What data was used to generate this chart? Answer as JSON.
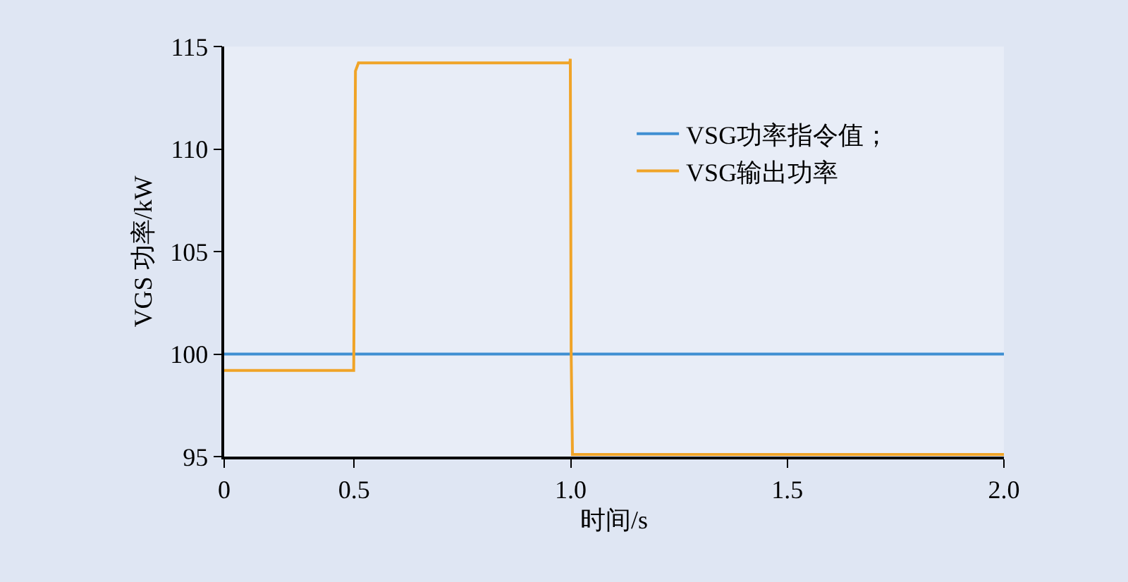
{
  "chart_data": {
    "type": "line",
    "xlabel": "时间/s",
    "ylabel": "VGS 功率/kW",
    "xlim": [
      0.2,
      2.0
    ],
    "xticks": [
      {
        "value": 0.2,
        "label": "0"
      },
      0.5,
      {
        "value": 1.0,
        "label": "1.0"
      },
      1.5,
      {
        "value": 2.0,
        "label": "2.0"
      }
    ],
    "ylim": [
      95,
      115
    ],
    "yticks": [
      95,
      100,
      105,
      110,
      115
    ],
    "grid": false,
    "legend": "top right",
    "marker": "none",
    "line_style": "solid",
    "series": [
      {
        "name": "VSG功率指令值；",
        "color": "#3f8fd2",
        "x": [
          0.2,
          2.0
        ],
        "values": [
          100,
          100
        ]
      },
      {
        "name": "VSG输出功率",
        "color": "#f0a428",
        "x": [
          0.2,
          0.499,
          0.503,
          0.51,
          0.998,
          0.999,
          1.001,
          1.004,
          1.02,
          2.0
        ],
        "values": [
          99.2,
          99.2,
          113.8,
          114.2,
          114.2,
          114.4,
          100,
          95.1,
          95.1,
          95.1
        ]
      }
    ]
  }
}
